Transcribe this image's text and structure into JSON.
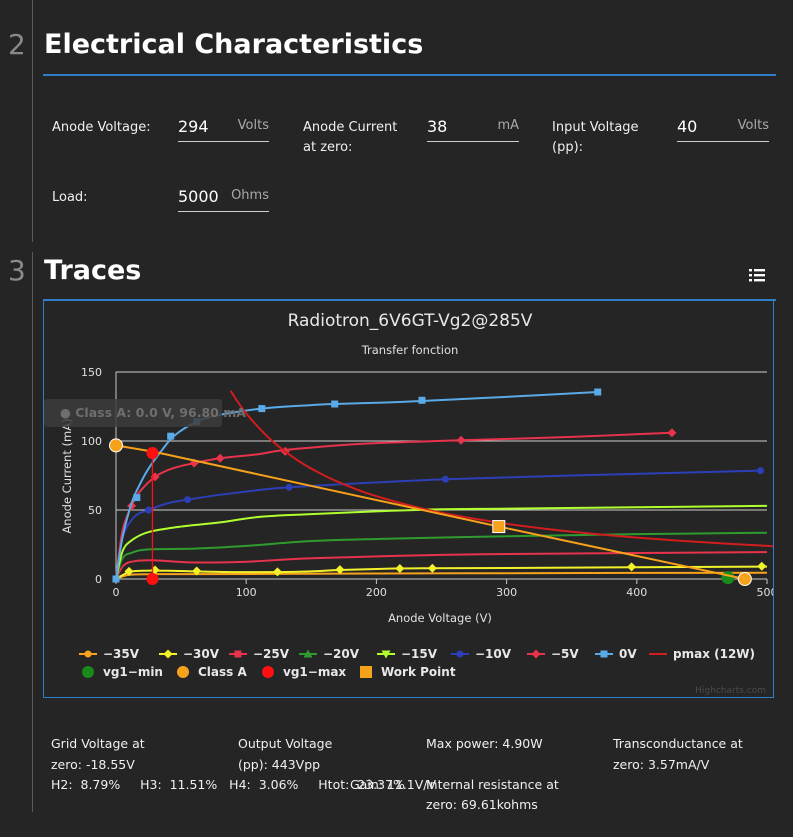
{
  "section2": {
    "number": "2",
    "title": "Electrical Characteristics"
  },
  "fields": {
    "anode_voltage": {
      "label": "Anode Voltage:",
      "value": "294",
      "unit": "Volts"
    },
    "anode_current": {
      "label": "Anode Current\nat zero:",
      "value": "38",
      "unit": "mA"
    },
    "input_voltage": {
      "label": "Input Voltage\n(pp):",
      "value": "40",
      "unit": "Volts"
    },
    "load": {
      "label": "Load:",
      "value": "5000",
      "unit": "Ohms"
    }
  },
  "section3": {
    "number": "3",
    "title": "Traces",
    "menu_icon": "hamburger-list-icon"
  },
  "chart_data": {
    "type": "line",
    "title": "Radiotron_6V6GT-Vg2@285V",
    "subtitle": "Transfer fonction",
    "xlabel": "Anode Voltage (V)",
    "ylabel": "Anode Current (mA)",
    "xlim": [
      0,
      500
    ],
    "ylim": [
      0,
      150
    ],
    "xticks": [
      0,
      100,
      200,
      300,
      400,
      500
    ],
    "yticks": [
      0,
      50,
      100,
      150
    ],
    "grid": true,
    "legend_position": "bottom",
    "credits": "Highcharts.com",
    "tooltip": "● Class A: 0.0 V, 96.80 mA",
    "series": [
      {
        "name": "−35V",
        "color": "#f7a21b",
        "marker": "circle",
        "points": [
          [
            0,
            0
          ],
          [
            10,
            3
          ],
          [
            30,
            3.5
          ],
          [
            60,
            3.5
          ],
          [
            120,
            3.7
          ],
          [
            200,
            4
          ],
          [
            300,
            4.2
          ],
          [
            400,
            4.4
          ],
          [
            500,
            4.5
          ]
        ],
        "markers": []
      },
      {
        "name": "−30V",
        "color": "#f2f22a",
        "marker": "diamond",
        "points": [
          [
            0,
            0
          ],
          [
            10,
            5
          ],
          [
            20,
            6
          ],
          [
            40,
            6
          ],
          [
            60,
            5.5
          ],
          [
            90,
            5
          ],
          [
            124,
            5
          ],
          [
            150,
            5.5
          ],
          [
            172,
            6.5
          ],
          [
            210,
            7.5
          ],
          [
            240,
            7.8
          ],
          [
            300,
            8
          ],
          [
            400,
            8.5
          ],
          [
            500,
            9
          ]
        ],
        "markers": [
          [
            10,
            5.5
          ],
          [
            30,
            6.5
          ],
          [
            62,
            5.8
          ],
          [
            124,
            5.2
          ],
          [
            172,
            6.8
          ],
          [
            218,
            7.6
          ],
          [
            243,
            7.8
          ],
          [
            396,
            8.8
          ],
          [
            496,
            9.2
          ]
        ]
      },
      {
        "name": "−25V",
        "color": "#e8334d",
        "marker": "square",
        "points": [
          [
            0,
            0
          ],
          [
            6,
            10
          ],
          [
            15,
            13
          ],
          [
            30,
            13.5
          ],
          [
            60,
            12
          ],
          [
            100,
            12.5
          ],
          [
            150,
            15
          ],
          [
            250,
            17.5
          ],
          [
            350,
            18.5
          ],
          [
            500,
            19.5
          ]
        ],
        "markers": []
      },
      {
        "name": "−20V",
        "color": "#2e9b2e",
        "marker": "triangle",
        "points": [
          [
            0,
            0
          ],
          [
            5,
            15
          ],
          [
            12,
            19
          ],
          [
            25,
            21.5
          ],
          [
            60,
            22
          ],
          [
            100,
            24
          ],
          [
            150,
            27.5
          ],
          [
            200,
            29
          ],
          [
            300,
            31
          ],
          [
            400,
            32.5
          ],
          [
            500,
            33.5
          ]
        ],
        "markers": []
      },
      {
        "name": "−15V",
        "color": "#b0ff2e",
        "marker": "triangle-down",
        "points": [
          [
            0,
            0
          ],
          [
            5,
            20
          ],
          [
            12,
            28
          ],
          [
            25,
            34
          ],
          [
            50,
            38
          ],
          [
            80,
            41
          ],
          [
            110,
            45
          ],
          [
            150,
            47
          ],
          [
            200,
            49
          ],
          [
            250,
            50.5
          ],
          [
            300,
            51
          ],
          [
            400,
            52
          ],
          [
            500,
            53
          ]
        ],
        "markers": []
      },
      {
        "name": "−10V",
        "color": "#2c3fb7",
        "marker": "circle",
        "points": [
          [
            0,
            0
          ],
          [
            5,
            30
          ],
          [
            14,
            45
          ],
          [
            25,
            50
          ],
          [
            40,
            55
          ],
          [
            55,
            57.5
          ],
          [
            80,
            61
          ],
          [
            110,
            64.5
          ],
          [
            133,
            66.5
          ],
          [
            180,
            69
          ],
          [
            253,
            72.3
          ],
          [
            350,
            75
          ],
          [
            495,
            78.5
          ]
        ],
        "markers": [
          [
            25,
            50
          ],
          [
            55,
            57.5
          ],
          [
            133,
            66.5
          ],
          [
            253,
            72.3
          ],
          [
            495,
            78.5
          ]
        ]
      },
      {
        "name": "−5V",
        "color": "#e8334d",
        "marker": "diamond",
        "points": [
          [
            0,
            0
          ],
          [
            5,
            35
          ],
          [
            12,
            53
          ],
          [
            18,
            63
          ],
          [
            30,
            74
          ],
          [
            43,
            80
          ],
          [
            60,
            84
          ],
          [
            80,
            87.5
          ],
          [
            110,
            90.5
          ],
          [
            130,
            93.5
          ],
          [
            190,
            98
          ],
          [
            265,
            100.5
          ],
          [
            350,
            103
          ],
          [
            427,
            106
          ]
        ],
        "markers": [
          [
            12,
            53
          ],
          [
            30,
            74
          ],
          [
            60,
            84
          ],
          [
            80,
            87.5
          ],
          [
            130,
            92.5
          ],
          [
            265,
            100.5
          ],
          [
            427,
            106
          ]
        ]
      },
      {
        "name": "0V",
        "color": "#5aaae8",
        "marker": "square",
        "points": [
          [
            0,
            0
          ],
          [
            5,
            30
          ],
          [
            12,
            55
          ],
          [
            18,
            68
          ],
          [
            25,
            80
          ],
          [
            35,
            93
          ],
          [
            45,
            104
          ],
          [
            62,
            114
          ],
          [
            80,
            119
          ],
          [
            112,
            123.5
          ],
          [
            150,
            126
          ],
          [
            168,
            126.8
          ],
          [
            210,
            128
          ],
          [
            235,
            129
          ],
          [
            300,
            132
          ],
          [
            370,
            135.5
          ]
        ],
        "markers": [
          [
            0,
            0
          ],
          [
            16,
            59
          ],
          [
            42,
            103.5
          ],
          [
            62,
            114
          ],
          [
            112,
            123.5
          ],
          [
            168,
            126.8
          ],
          [
            235,
            129.5
          ],
          [
            370,
            135.5
          ]
        ]
      },
      {
        "name": "pmax (12W)",
        "color": "#d11d1d",
        "marker": "line",
        "points": [
          [
            88,
            136.4
          ],
          [
            100,
            120
          ],
          [
            120,
            100
          ],
          [
            140,
            85.7
          ],
          [
            160,
            75
          ],
          [
            180,
            66.7
          ],
          [
            200,
            60
          ],
          [
            240,
            50
          ],
          [
            280,
            42.9
          ],
          [
            320,
            37.5
          ],
          [
            360,
            33.3
          ],
          [
            400,
            30
          ],
          [
            450,
            26.7
          ],
          [
            500,
            24
          ],
          [
            505,
            23.8
          ]
        ],
        "markers": []
      },
      {
        "name": "vg1−min",
        "color": "#1a8a1a",
        "marker": "circle",
        "points": [
          [
            470,
            1
          ]
        ],
        "markers": [
          [
            470,
            1
          ]
        ]
      },
      {
        "name": "Class A",
        "color": "#f7a21b",
        "marker": "circle",
        "points": [
          [
            0,
            96.8
          ],
          [
            30,
            92
          ],
          [
            294,
            38
          ],
          [
            483,
            0
          ]
        ],
        "markers": [
          [
            0,
            96.8
          ],
          [
            483,
            0
          ]
        ]
      },
      {
        "name": "vg1−max",
        "color": "#ff1010",
        "marker": "circle",
        "points": [
          [
            28,
            0
          ],
          [
            28,
            91.3
          ]
        ],
        "markers": [
          [
            28,
            91.3
          ],
          [
            28,
            0
          ]
        ]
      },
      {
        "name": "Work Point",
        "color": "#f7a21b",
        "marker": "square",
        "points": [
          [
            294,
            38
          ]
        ],
        "markers": [
          [
            294,
            38
          ]
        ]
      }
    ]
  },
  "results": {
    "grid_voltage_label": "Grid Voltage at",
    "grid_voltage_value": "zero:  -18.55V",
    "output_voltage_label": "Output Voltage",
    "output_voltage_value": "(pp):  443Vpp",
    "max_power": "Max power:  4.90W",
    "transconductance_label": "Transconductance at",
    "transconductance_value": "zero:  3.57mA/V",
    "harmonics": "H2:  8.79%     H3:  11.51%   H4:  3.06%     Htot:  23.37%",
    "gain": "Gain:  11.1V/V",
    "internal_resistance_label": "Internal resistance at",
    "internal_resistance_value": "zero:  69.61kohms"
  }
}
